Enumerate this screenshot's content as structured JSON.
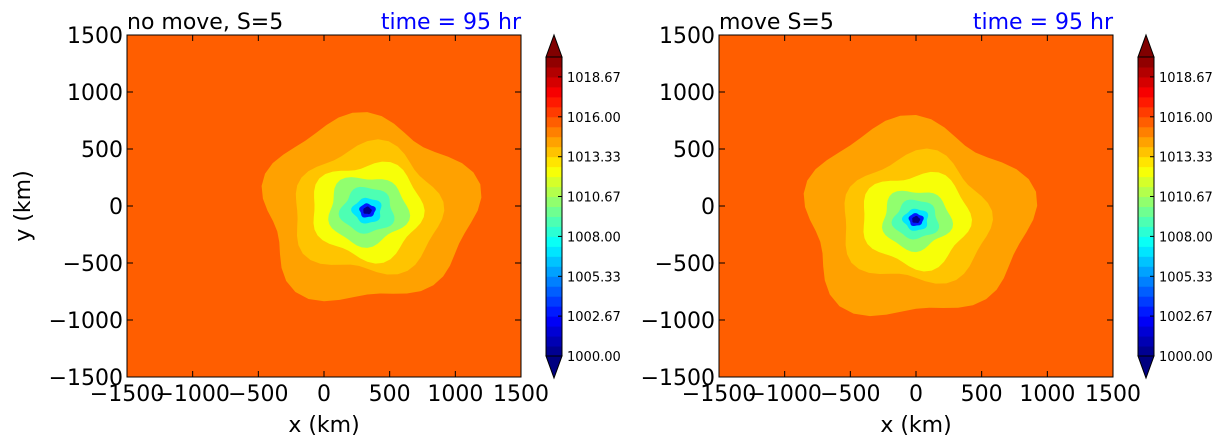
{
  "chart_data": [
    {
      "type": "heatmap",
      "title_left": "no move, S=5",
      "title_right": "time = 95 hr",
      "title_right_color": "#0000ff",
      "xlabel": "x (km)",
      "ylabel": "y (km)",
      "xlim": [
        -1500,
        1500
      ],
      "ylim": [
        -1500,
        1500
      ],
      "xticks": [
        -1500,
        -1000,
        -500,
        0,
        500,
        1000,
        1500
      ],
      "yticks": [
        -1500,
        -1000,
        -500,
        0,
        500,
        1000,
        1500
      ],
      "background_value": 1015.5,
      "low_center": [
        330,
        -40
      ],
      "pressure_rings": [
        {
          "value": 1014.5,
          "radius": 800
        },
        {
          "value": 1013.5,
          "radius": 560
        },
        {
          "value": 1012.5,
          "radius": 420
        },
        {
          "value": 1010.5,
          "radius": 300
        },
        {
          "value": 1009.0,
          "radius": 200
        },
        {
          "value": 1007.0,
          "radius": 110
        },
        {
          "value": 1003.0,
          "radius": 60
        },
        {
          "value": 1000.5,
          "radius": 32
        }
      ]
    },
    {
      "type": "heatmap",
      "title_left": "move S=5",
      "title_right": "time = 95 hr",
      "title_right_color": "#0000ff",
      "xlabel": "x (km)",
      "ylabel": "",
      "xlim": [
        -1500,
        1500
      ],
      "ylim": [
        -1500,
        1500
      ],
      "xticks": [
        -1500,
        -1000,
        -500,
        0,
        500,
        1000,
        1500
      ],
      "yticks": [
        -1500,
        -1000,
        -500,
        0,
        500,
        1000,
        1500
      ],
      "background_value": 1015.5,
      "low_center": [
        0,
        -120
      ],
      "pressure_rings": [
        {
          "value": 1014.5,
          "radius": 850
        },
        {
          "value": 1013.5,
          "radius": 560
        },
        {
          "value": 1012.5,
          "radius": 410
        },
        {
          "value": 1010.5,
          "radius": 260
        },
        {
          "value": 1009.0,
          "radius": 170
        },
        {
          "value": 1007.0,
          "radius": 95
        },
        {
          "value": 1003.0,
          "radius": 55
        },
        {
          "value": 1000.5,
          "radius": 30
        }
      ]
    }
  ],
  "colorbar": {
    "min": 1000.0,
    "max": 1020.0,
    "levels": 30,
    "tick_labels": [
      "1000.00",
      "1002.67",
      "1005.33",
      "1008.00",
      "1010.67",
      "1013.33",
      "1016.00",
      "1018.67"
    ],
    "tick_values": [
      1000.0,
      1002.67,
      1005.33,
      1008.0,
      1010.67,
      1013.33,
      1016.0,
      1018.67
    ],
    "colormap": "jet",
    "extend": "both"
  }
}
